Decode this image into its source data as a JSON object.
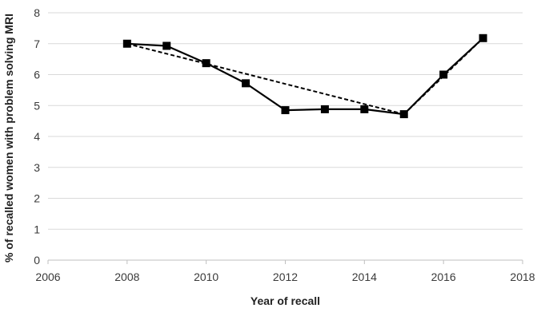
{
  "chart_data": {
    "type": "line",
    "title": "",
    "xlabel": "Year of recall",
    "ylabel": "% of recalled women with problem solving MRI",
    "xlim": [
      2006,
      2018
    ],
    "ylim": [
      0,
      8
    ],
    "xticks": [
      2006,
      2008,
      2010,
      2012,
      2014,
      2016,
      2018
    ],
    "yticks": [
      0,
      1,
      2,
      3,
      4,
      5,
      6,
      7,
      8
    ],
    "grid": "horizontal",
    "legend": "none",
    "series": [
      {
        "style": "solid",
        "marker": "square",
        "color": "#000000",
        "x": [
          2008,
          2009,
          2010,
          2011,
          2012,
          2013,
          2014,
          2015,
          2016,
          2017
        ],
        "y": [
          7.0,
          6.93,
          6.37,
          5.72,
          4.85,
          4.88,
          4.88,
          4.72,
          6.0,
          7.18
        ]
      },
      {
        "style": "dashed",
        "marker": "none",
        "color": "#000000",
        "x": [
          2008,
          2010,
          2015
        ],
        "y": [
          7.0,
          6.35,
          4.72
        ]
      },
      {
        "style": "dashed",
        "marker": "none",
        "color": "#000000",
        "x": [
          2015,
          2017
        ],
        "y": [
          4.72,
          7.18
        ]
      }
    ]
  }
}
